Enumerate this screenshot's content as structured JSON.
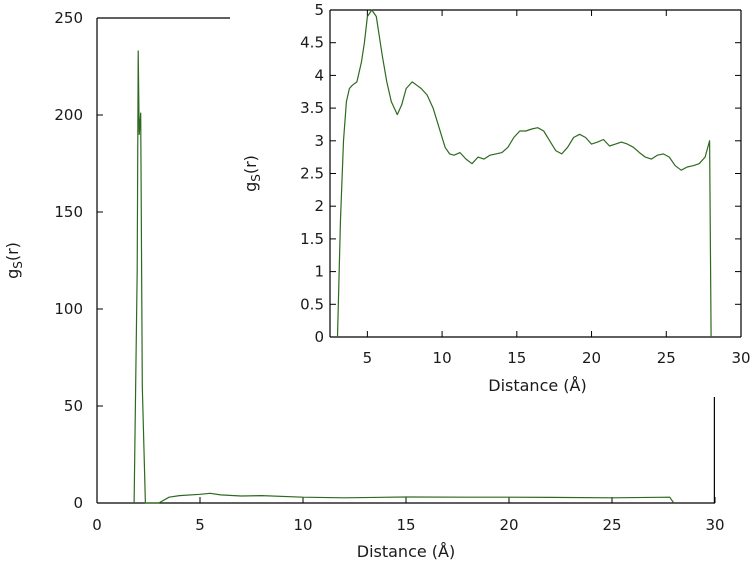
{
  "chart_data": [
    {
      "type": "line",
      "role": "main",
      "xlabel": "Distance (Å)",
      "ylabel": "g_S(r)",
      "xlim": [
        0,
        30
      ],
      "ylim": [
        0,
        250
      ],
      "x_ticks": [
        0,
        5,
        10,
        15,
        20,
        25,
        30
      ],
      "y_ticks": [
        0,
        50,
        100,
        150,
        200,
        250
      ],
      "x_tick_labels": [
        "0",
        "5",
        "10",
        "15",
        "20",
        "25",
        "30"
      ],
      "y_tick_labels": [
        "0",
        "50",
        "100",
        "150",
        "200",
        "250"
      ],
      "grid": false,
      "line_color": "#2d6a1f",
      "series": [
        {
          "x": [
            1.8,
            1.95,
            2.0,
            2.05,
            2.12,
            2.2,
            2.35,
            3.0,
            3.5,
            4.0,
            5.0,
            5.5,
            6.0,
            7.0,
            8.0,
            10.0,
            12.0,
            15.0,
            18.0,
            20.0,
            22.0,
            25.0,
            27.8,
            28.0
          ],
          "y": [
            0,
            120,
            233,
            190,
            201,
            60,
            0,
            0,
            3,
            3.8,
            4.5,
            5,
            4.2,
            3.6,
            3.8,
            3.0,
            2.7,
            3.1,
            3.0,
            3.0,
            2.9,
            2.7,
            3.0,
            0
          ]
        }
      ],
      "end_marker": {
        "x": 29.97,
        "y_from": 0,
        "y_to": 55
      }
    },
    {
      "type": "line",
      "role": "inset",
      "xlabel": "Distance (Å)",
      "ylabel": "g_S(r)",
      "xlim": [
        2.5,
        30
      ],
      "ylim": [
        0,
        5
      ],
      "x_ticks": [
        5,
        10,
        15,
        20,
        25,
        30
      ],
      "y_ticks": [
        0,
        0.5,
        1,
        1.5,
        2,
        2.5,
        3,
        3.5,
        4,
        4.5,
        5
      ],
      "x_tick_labels": [
        "5",
        "10",
        "15",
        "20",
        "25",
        "30"
      ],
      "y_tick_labels": [
        "0",
        "0.5",
        "1",
        "1.5",
        "2",
        "2.5",
        "3",
        "3.5",
        "4",
        "4.5",
        "5"
      ],
      "grid": false,
      "line_color": "#2d6a1f",
      "series": [
        {
          "x": [
            3.0,
            3.2,
            3.4,
            3.6,
            3.8,
            4.0,
            4.3,
            4.6,
            4.8,
            5.0,
            5.3,
            5.6,
            5.8,
            6.0,
            6.3,
            6.6,
            7.0,
            7.3,
            7.6,
            8.0,
            8.3,
            8.6,
            9.0,
            9.4,
            9.8,
            10.2,
            10.5,
            10.8,
            11.2,
            11.6,
            12.0,
            12.4,
            12.8,
            13.2,
            13.6,
            14.0,
            14.4,
            14.8,
            15.2,
            15.6,
            16.0,
            16.4,
            16.8,
            17.2,
            17.6,
            18.0,
            18.4,
            18.8,
            19.2,
            19.6,
            20.0,
            20.4,
            20.8,
            21.2,
            21.6,
            22.0,
            22.4,
            22.8,
            23.2,
            23.6,
            24.0,
            24.4,
            24.8,
            25.2,
            25.6,
            26.0,
            26.4,
            26.8,
            27.2,
            27.6,
            27.9,
            28.0
          ],
          "y": [
            0.0,
            1.8,
            3.0,
            3.6,
            3.8,
            3.85,
            3.9,
            4.2,
            4.5,
            4.9,
            5.0,
            4.9,
            4.6,
            4.3,
            3.9,
            3.6,
            3.4,
            3.55,
            3.8,
            3.9,
            3.85,
            3.8,
            3.7,
            3.5,
            3.2,
            2.9,
            2.8,
            2.78,
            2.82,
            2.72,
            2.65,
            2.75,
            2.72,
            2.78,
            2.8,
            2.82,
            2.9,
            3.05,
            3.15,
            3.15,
            3.18,
            3.2,
            3.15,
            3.0,
            2.85,
            2.8,
            2.9,
            3.05,
            3.1,
            3.05,
            2.95,
            2.98,
            3.02,
            2.92,
            2.95,
            2.98,
            2.95,
            2.9,
            2.82,
            2.75,
            2.72,
            2.78,
            2.8,
            2.75,
            2.62,
            2.55,
            2.6,
            2.62,
            2.65,
            2.75,
            3.0,
            0.0
          ]
        }
      ]
    }
  ]
}
